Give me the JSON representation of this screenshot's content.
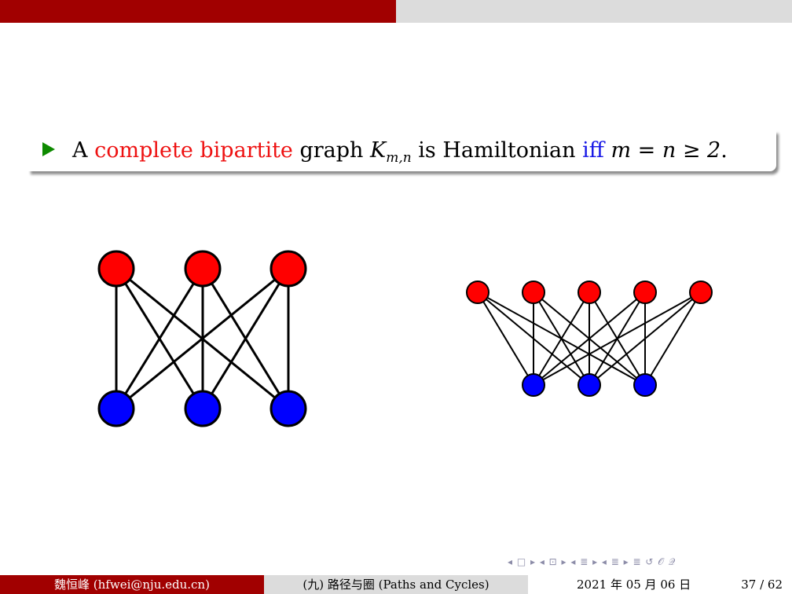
{
  "progress": {
    "fraction": 0.5,
    "fill_color": "#a10000",
    "track_color": "#dcdcdc"
  },
  "block": {
    "bullet_icon": "green-triangle-bullet",
    "text_a": "A ",
    "text_red": "complete bipartite",
    "text_b": " graph ",
    "math_K": "K",
    "math_sub": "m,n",
    "text_c": " is Hamiltonian ",
    "text_blue": "iff",
    "math_cond": " m = n ≥ 2",
    "text_end": "."
  },
  "colors": {
    "red_node": "#ff0000",
    "blue_node": "#0000ff",
    "accent": "#a10000",
    "emphasis_red": "#ee1111",
    "emphasis_blue": "#1515e6",
    "bullet": "#0e8a00"
  },
  "graphs": [
    {
      "name": "K_3,3",
      "top_count": 3,
      "bottom_count": 3
    },
    {
      "name": "K_5,3",
      "top_count": 5,
      "bottom_count": 3
    }
  ],
  "nav": {
    "icons": [
      "frame-prev-icon",
      "frame-next-icon",
      "subsection-prev-icon",
      "subsection-next-icon",
      "section-prev-icon",
      "section-next-icon",
      "search-icon"
    ],
    "text": "◂ □ ▸  ◂ ⊡ ▸  ◂ ≣ ▸  ◂ ≣ ▸   ≣   ↺ 𝒪 𝒬"
  },
  "footer": {
    "author": "魏恒峰 (hfwei@nju.edu.cn)",
    "title": "(九) 路径与圈 (Paths and Cycles)",
    "date": "2021 年 05 月 06 日",
    "page": "37 / 62"
  }
}
